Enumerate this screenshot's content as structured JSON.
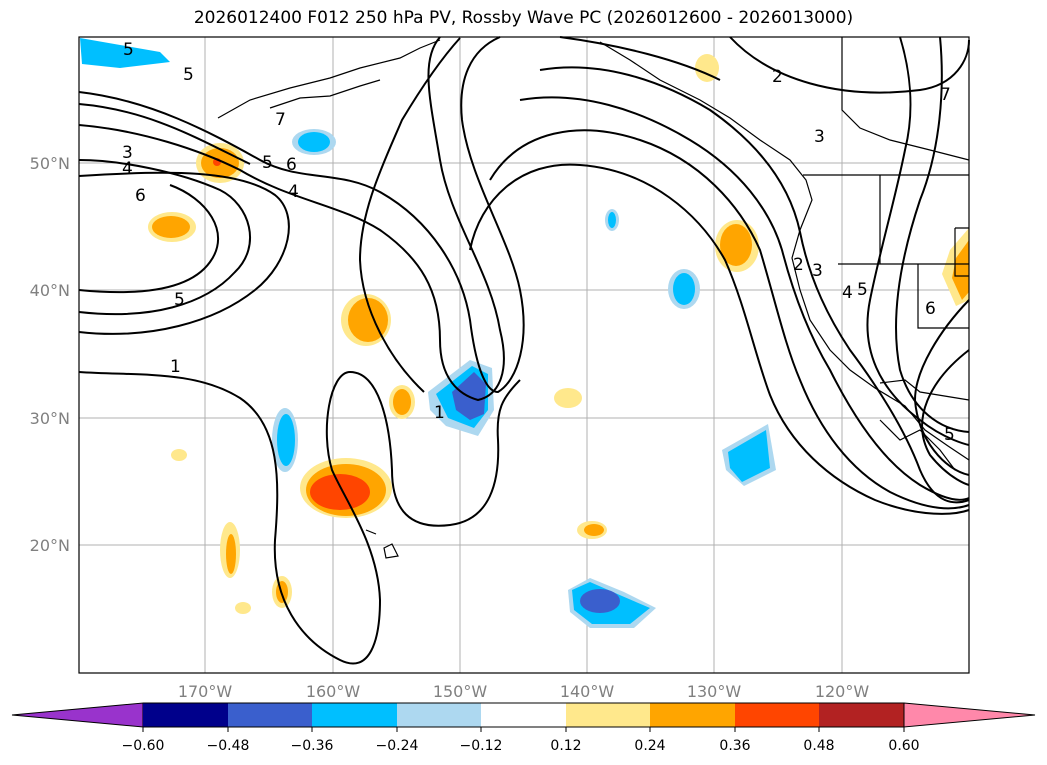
{
  "title": "2026012400 F012 250 hPa PV, Rossby Wave PC (2026012600 - 2026013000)",
  "map": {
    "lon_range": [
      -180,
      -110
    ],
    "lat_range": [
      10,
      60
    ],
    "lat_ticks": [
      {
        "value": 50,
        "label": "50°N"
      },
      {
        "value": 40,
        "label": "40°N"
      },
      {
        "value": 30,
        "label": "30°N"
      },
      {
        "value": 20,
        "label": "20°N"
      }
    ],
    "lon_ticks": [
      {
        "value": -170,
        "label": "170°W"
      },
      {
        "value": -160,
        "label": "160°W"
      },
      {
        "value": -150,
        "label": "150°W"
      },
      {
        "value": -140,
        "label": "140°W"
      },
      {
        "value": -130,
        "label": "130°W"
      },
      {
        "value": -120,
        "label": "120°W"
      }
    ],
    "contour_labels": [
      "5",
      "5",
      "3",
      "4",
      "6",
      "5",
      "6",
      "4",
      "7",
      "5",
      "1",
      "1",
      "2",
      "3",
      "7",
      "2",
      "3",
      "4",
      "5",
      "6",
      "5"
    ]
  },
  "colorbar": {
    "colors": [
      "#9933cc",
      "#00008b",
      "#3a5fcd",
      "#00bfff",
      "#add8f0",
      "#ffffff",
      "#ffe88c",
      "#ffa500",
      "#ff4500",
      "#b22222",
      "#ff88aa"
    ],
    "tick_labels": [
      "−0.60",
      "−0.48",
      "−0.36",
      "−0.24",
      "−0.12",
      "0.12",
      "0.24",
      "0.36",
      "0.48",
      "0.60"
    ]
  }
}
